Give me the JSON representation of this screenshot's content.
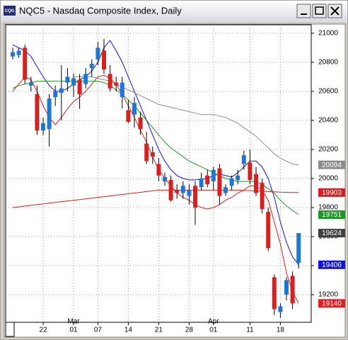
{
  "app_icon": "CQG",
  "chart_data": {
    "type": "candlestick",
    "title": "NQC5 - Nasdaq Composite Index, Daily",
    "categories": [
      null,
      null,
      null,
      null,
      null,
      "22",
      null,
      null,
      null,
      null,
      "01",
      null,
      null,
      null,
      "07",
      null,
      null,
      null,
      null,
      "14",
      null,
      null,
      null,
      null,
      "21",
      null,
      null,
      null,
      null,
      "28",
      null,
      null,
      null,
      "01",
      null,
      null,
      null,
      null,
      null,
      "11",
      null,
      null,
      null,
      null,
      "18",
      null,
      null,
      null
    ],
    "months": [
      null,
      null,
      null,
      null,
      null,
      null,
      null,
      null,
      null,
      null,
      "Mar",
      null,
      null,
      null,
      null,
      null,
      null,
      null,
      null,
      null,
      null,
      null,
      null,
      null,
      null,
      null,
      null,
      null,
      null,
      null,
      null,
      null,
      null,
      "Apr",
      null,
      null,
      null,
      null,
      null,
      null,
      null,
      null,
      null,
      null,
      null,
      null,
      null,
      null
    ],
    "open": [
      20840,
      20850,
      20900,
      20640,
      20580,
      20330,
      20340,
      20560,
      20590,
      20660,
      20640,
      20680,
      20650,
      20760,
      20820,
      20880,
      20720,
      20660,
      20560,
      20470,
      20440,
      20420,
      20240,
      20180,
      20100,
      19980,
      19990,
      19920,
      19900,
      19880,
      19950,
      19940,
      20020,
      19980,
      20070,
      19900,
      19950,
      19990,
      20100,
      20110,
      20030,
      19970,
      19770,
      19320,
      19080,
      19200,
      19330,
      19420
    ],
    "high": [
      20900,
      20900,
      20920,
      20700,
      20640,
      20420,
      20580,
      20640,
      20780,
      20760,
      20720,
      20720,
      20760,
      20820,
      20940,
      20960,
      20780,
      20700,
      20700,
      20540,
      20560,
      20460,
      20320,
      20220,
      20140,
      20040,
      20020,
      19960,
      19980,
      19960,
      19980,
      20040,
      20060,
      20080,
      20100,
      19960,
      20020,
      20060,
      20190,
      20200,
      20080,
      20000,
      19800,
      19340,
      19140,
      19320,
      19360,
      19620
    ],
    "low": [
      20820,
      20830,
      20650,
      20600,
      20300,
      20300,
      20220,
      20500,
      20400,
      20600,
      20560,
      20480,
      20620,
      20700,
      20780,
      20720,
      20600,
      20600,
      20480,
      20380,
      20350,
      20300,
      20100,
      20100,
      19980,
      19950,
      19840,
      19860,
      19860,
      19820,
      19680,
      19920,
      19940,
      19920,
      19820,
      19880,
      19920,
      19960,
      20060,
      19960,
      19880,
      19760,
      19500,
      19060,
      19040,
      19160,
      19100,
      19380
    ],
    "close": [
      20870,
      20880,
      20680,
      20660,
      20330,
      20380,
      20550,
      20600,
      20620,
      20700,
      20690,
      20580,
      20720,
      20790,
      20900,
      20750,
      20620,
      20640,
      20660,
      20390,
      20520,
      20340,
      20120,
      20150,
      20020,
      20010,
      19850,
      19900,
      19950,
      19920,
      19800,
      20000,
      19960,
      20060,
      19880,
      19940,
      20000,
      20020,
      20160,
      19990,
      19900,
      19790,
      19520,
      19100,
      19120,
      19300,
      19140,
      19624
    ],
    "up_color": "#1e78d2",
    "down_color": "#d42222",
    "lines": [
      {
        "color": "#1414d2",
        "values": [
          20920,
          20900,
          20880,
          20840,
          20770,
          20700,
          20640,
          20600,
          20600,
          20620,
          20650,
          20680,
          20700,
          20740,
          20800,
          20900,
          20950,
          20880,
          20800,
          20700,
          20600,
          20500,
          20400,
          20300,
          20200,
          20120,
          20060,
          20020,
          20000,
          19990,
          19990,
          19995,
          20000,
          20020,
          20030,
          20020,
          20010,
          20040,
          20080,
          20120,
          20120,
          20080,
          20000,
          19870,
          19700,
          19560,
          19460,
          19406
        ]
      },
      {
        "color": "#dc1e1e",
        "values": [
          20600,
          20650,
          20700,
          20680,
          20600,
          20500,
          20420,
          20370,
          20420,
          20480,
          20530,
          20560,
          20600,
          20650,
          20700,
          20710,
          20690,
          20650,
          20580,
          20500,
          20420,
          20330,
          20250,
          20150,
          20060,
          20000,
          19950,
          19900,
          19870,
          19850,
          19820,
          19800,
          19790,
          19800,
          19820,
          19850,
          19870,
          19900,
          19920,
          19950,
          19950,
          19920,
          19850,
          19700,
          19550,
          19350,
          19220,
          19140
        ]
      },
      {
        "color": "#1e9628",
        "values": [
          20620,
          20640,
          20650,
          20660,
          20670,
          20670,
          20670,
          20670,
          20670,
          20670,
          20670,
          20670,
          20670,
          20670,
          20670,
          20660,
          20640,
          20610,
          20580,
          20540,
          20500,
          20450,
          20400,
          20350,
          20300,
          20250,
          20210,
          20180,
          20150,
          20120,
          20100,
          20080,
          20060,
          20040,
          20020,
          20000,
          19990,
          19980,
          19980,
          19980,
          19980,
          19960,
          19930,
          19900,
          19850,
          19810,
          19780,
          19751
        ]
      },
      {
        "color": "#8c8c8c",
        "values": [
          null,
          null,
          null,
          null,
          null,
          null,
          null,
          null,
          null,
          null,
          20700,
          20700,
          20700,
          20700,
          20690,
          20680,
          20670,
          20650,
          20630,
          20610,
          20590,
          20570,
          20550,
          20530,
          20510,
          20500,
          20490,
          20480,
          20470,
          20460,
          20450,
          20440,
          20440,
          20440,
          20430,
          20420,
          20400,
          20380,
          20350,
          20320,
          20290,
          20250,
          20210,
          20170,
          20140,
          20120,
          20100,
          20094
        ]
      },
      {
        "color": "#d21e1e",
        "values": [
          19800,
          19805,
          19810,
          19815,
          19820,
          19825,
          19830,
          19835,
          19840,
          19845,
          19850,
          19855,
          19860,
          19865,
          19870,
          19875,
          19880,
          19885,
          19890,
          19895,
          19900,
          19905,
          19910,
          19915,
          19920,
          19920,
          19920,
          19920,
          19920,
          19920,
          19920,
          19920,
          19920,
          19920,
          19920,
          19920,
          19920,
          19920,
          19918,
          19916,
          19914,
          19912,
          19910,
          19908,
          19906,
          19905,
          19904,
          19903
        ]
      }
    ],
    "last_color": "#404040",
    "ylim": [
      19010,
      21058
    ],
    "yticks": [
      19200,
      19400,
      19600,
      19800,
      20000,
      20200,
      20400,
      20600,
      20800,
      21000
    ],
    "grid": true
  }
}
